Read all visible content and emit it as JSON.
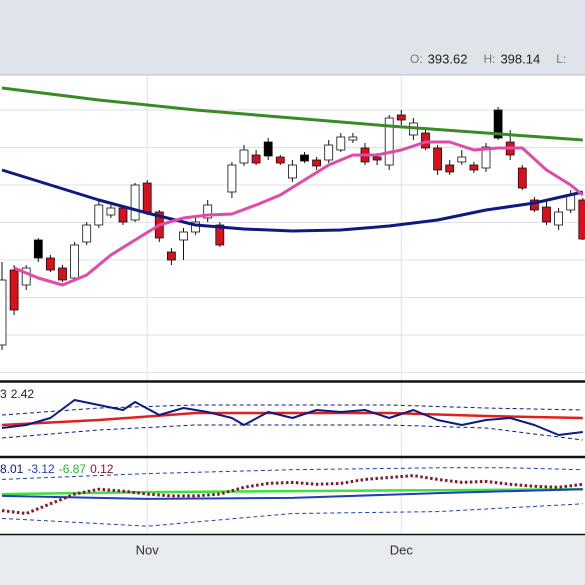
{
  "header": {
    "readout": [
      {
        "label": "O:",
        "value": 393.62
      },
      {
        "label": "H:",
        "value": 398.14
      },
      {
        "label": "L:"
      }
    ]
  },
  "chart_data": [
    {
      "type": "candlestick",
      "categories": [
        null,
        null,
        null,
        null,
        null,
        null,
        null,
        null,
        null,
        null,
        null,
        null,
        "Nov",
        null,
        null,
        null,
        null,
        null,
        null,
        null,
        null,
        null,
        null,
        null,
        null,
        null,
        null,
        null,
        null,
        null,
        null,
        null,
        null,
        "Dec",
        null,
        null,
        null,
        null,
        null,
        null,
        null,
        null,
        null,
        null,
        null,
        null,
        null,
        null,
        null
      ],
      "ylim": [
        369.5,
        400
      ],
      "ygrid": [
        396.5,
        392.75,
        389,
        385.25,
        381.5,
        377.75,
        374,
        370.25
      ],
      "ohlc": [
        [
          373.0,
          381.3,
          372.5,
          379.5
        ],
        [
          380.5,
          381.0,
          376.0,
          376.5
        ],
        [
          379.0,
          381.0,
          378.5,
          380.7
        ],
        [
          381.7,
          383.7,
          381.3,
          383.5
        ],
        [
          381.7,
          382.0,
          380.3,
          380.5
        ],
        [
          380.7,
          381.0,
          379.3,
          379.5
        ],
        [
          379.7,
          383.3,
          379.5,
          383.0
        ],
        [
          383.3,
          385.3,
          383.0,
          385.0
        ],
        [
          385.0,
          387.5,
          384.7,
          387.0
        ],
        [
          386.0,
          387.0,
          385.7,
          386.7
        ],
        [
          386.7,
          387.0,
          385.0,
          385.3
        ],
        [
          385.5,
          389.2,
          385.3,
          389.0
        ],
        [
          389.2,
          389.5,
          386.0,
          386.3
        ],
        [
          386.3,
          386.5,
          383.3,
          383.7
        ],
        [
          382.3,
          382.7,
          381.0,
          381.5
        ],
        [
          383.5,
          384.7,
          381.5,
          384.3
        ],
        [
          384.3,
          385.7,
          384.0,
          385.3
        ],
        [
          385.7,
          387.5,
          385.3,
          387.0
        ],
        [
          385.0,
          385.3,
          382.8,
          383.0
        ],
        [
          388.3,
          391.3,
          387.7,
          391.0
        ],
        [
          391.2,
          393.0,
          390.9,
          392.5
        ],
        [
          392.0,
          392.5,
          391.0,
          391.2
        ],
        [
          391.9,
          393.7,
          391.5,
          393.3
        ],
        [
          391.8,
          392.0,
          391.0,
          391.2
        ],
        [
          389.7,
          391.5,
          389.3,
          391.0
        ],
        [
          391.4,
          392.3,
          391.2,
          392.0
        ],
        [
          391.5,
          391.8,
          390.5,
          390.9
        ],
        [
          391.5,
          393.5,
          391.2,
          393.0
        ],
        [
          392.5,
          394.2,
          392.3,
          393.8
        ],
        [
          393.5,
          394.2,
          393.2,
          393.8
        ],
        [
          392.7,
          393.2,
          391.0,
          391.3
        ],
        [
          391.8,
          392.2,
          391.0,
          391.5
        ],
        [
          391.0,
          396.0,
          390.5,
          395.7
        ],
        [
          396.0,
          396.5,
          395.0,
          395.5
        ],
        [
          394.0,
          395.7,
          393.5,
          395.2
        ],
        [
          394.2,
          394.5,
          392.5,
          392.7
        ],
        [
          392.7,
          393.0,
          390.0,
          390.5
        ],
        [
          391.0,
          391.5,
          390.0,
          390.3
        ],
        [
          391.3,
          392.5,
          391.0,
          391.8
        ],
        [
          391.0,
          391.3,
          390.2,
          390.5
        ],
        [
          390.7,
          393.2,
          390.3,
          392.8
        ],
        [
          393.7,
          396.8,
          393.5,
          396.5
        ],
        [
          393.3,
          394.5,
          391.5,
          392.0
        ],
        [
          390.7,
          391.0,
          388.5,
          388.7
        ],
        [
          387.5,
          387.8,
          386.3,
          386.5
        ],
        [
          386.8,
          387.5,
          385.0,
          385.3
        ],
        [
          385.0,
          386.7,
          384.5,
          386.3
        ],
        [
          386.5,
          388.5,
          386.2,
          388.0
        ],
        [
          387.5,
          387.7,
          383.5,
          383.6
        ]
      ],
      "fills": [
        "#ffffff",
        "#d8101c",
        "#ffffff",
        "#000000",
        "#d8101c",
        "#d8101c",
        "#ffffff",
        "#ffffff",
        "#ffffff",
        "#ffffff",
        "#d8101c",
        "#ffffff",
        "#d8101c",
        "#d8101c",
        "#d8101c",
        "#ffffff",
        "#ffffff",
        "#ffffff",
        "#d8101c",
        "#ffffff",
        "#ffffff",
        "#d8101c",
        "#000000",
        "#d8101c",
        "#ffffff",
        "#000000",
        "#d8101c",
        "#ffffff",
        "#ffffff",
        "#ffffff",
        "#d8101c",
        "#d8101c",
        "#ffffff",
        "#d8101c",
        "#ffffff",
        "#d8101c",
        "#d8101c",
        "#d8101c",
        "#ffffff",
        "#d8101c",
        "#ffffff",
        "#000000",
        "#d8101c",
        "#d8101c",
        "#d8101c",
        "#d8101c",
        "#ffffff",
        "#ffffff",
        "#d8101c"
      ],
      "series": [
        {
          "color": "#3a8a26",
          "style": "solid",
          "width": 3,
          "x": [
            0,
            8,
            16,
            24,
            32,
            40,
            48
          ],
          "values": [
            398.7,
            397.5,
            396.5,
            395.7,
            394.9,
            394.2,
            393.5
          ]
        },
        {
          "color": "#0d1a80",
          "style": "solid",
          "width": 3,
          "x": [
            0,
            4,
            8,
            12,
            16,
            20,
            24,
            28,
            32,
            36,
            40,
            44,
            48
          ],
          "values": [
            390.5,
            389,
            387.5,
            386.2,
            385,
            384.6,
            384.4,
            384.5,
            384.9,
            385.5,
            386.5,
            387.2,
            388.3
          ]
        },
        {
          "color": "#e04aa8",
          "style": "solid",
          "width": 3,
          "x": [
            1,
            3,
            5,
            7,
            9,
            11,
            13,
            15,
            17,
            19,
            21,
            23,
            25,
            27,
            29,
            31,
            33,
            35,
            37,
            39,
            41,
            43,
            45,
            47,
            48
          ],
          "values": [
            380.7,
            379.7,
            379,
            380,
            382,
            383.5,
            385,
            385.7,
            386,
            386.1,
            387,
            388,
            389.5,
            391,
            392,
            392,
            392.5,
            393.3,
            393.3,
            392.5,
            392.7,
            392.7,
            390.5,
            389,
            388
          ]
        }
      ]
    },
    {
      "type": "line",
      "ylim": [
        0,
        100
      ],
      "readout": [
        {
          "value": 3,
          "color": "#1b1b3a"
        },
        {
          "value": 2.42,
          "color": "#1b1b3a"
        }
      ],
      "series": [
        {
          "color": "#0d1a80",
          "style": "dashed",
          "width": 1,
          "x": [
            0,
            8,
            16,
            24,
            32,
            40,
            48
          ],
          "values": [
            56.2,
            65.8,
            69.9,
            69.9,
            69.9,
            65.8,
            63.0
          ]
        },
        {
          "color": "#0d1a80",
          "style": "dashed",
          "width": 1,
          "x": [
            0,
            8,
            16,
            24,
            32,
            40,
            48
          ],
          "values": [
            24.7,
            35.6,
            42.5,
            42.5,
            42.5,
            38.4,
            21.9
          ]
        },
        {
          "color": "#e0201c",
          "style": "solid",
          "width": 2.5,
          "x": [
            0,
            8,
            16,
            24,
            32,
            40,
            48
          ],
          "values": [
            42.5,
            49.3,
            58.9,
            58.9,
            58.9,
            54.8,
            52.1
          ]
        },
        {
          "color": "#0d1a80",
          "style": "solid",
          "width": 2,
          "x": [
            0,
            2,
            4,
            6,
            8,
            10,
            11,
            13,
            15,
            17,
            19,
            20,
            22,
            24,
            26,
            28,
            30,
            32,
            34,
            36,
            38,
            40,
            42,
            44,
            46,
            48
          ],
          "values": [
            38.4,
            42.5,
            52.1,
            76.7,
            69.9,
            63.0,
            74.0,
            56.2,
            65.8,
            60.3,
            52.1,
            42.5,
            60.3,
            52.1,
            63.0,
            60.3,
            63.0,
            52.1,
            63.0,
            49.3,
            42.5,
            49.3,
            52.1,
            42.5,
            28.8,
            32.9
          ]
        }
      ]
    },
    {
      "type": "line",
      "ylim": [
        0,
        100
      ],
      "readout": [
        {
          "value": 8.01,
          "color": "#0d1a80"
        },
        {
          "value": -3.12,
          "color": "#1f3fbf"
        },
        {
          "value": -6.87,
          "color": "#22b83a"
        },
        {
          "value": 0.12,
          "color": "#8a1530"
        }
      ],
      "series": [
        {
          "color": "#1f3fbf",
          "style": "dashed",
          "width": 1,
          "x": [
            0,
            12,
            24,
            36,
            42,
            48
          ],
          "values": [
            71.4,
            79.2,
            84.4,
            87,
            87,
            84.4
          ]
        },
        {
          "color": "#1f3fbf",
          "style": "dashed",
          "width": 1,
          "x": [
            0,
            12,
            24,
            36,
            48
          ],
          "values": [
            19.5,
            9.1,
            26,
            28.6,
            39
          ]
        },
        {
          "color": "#3ee03a",
          "style": "solid",
          "width": 2.5,
          "x": [
            0,
            12,
            24,
            36,
            48
          ],
          "values": [
            51.9,
            54.5,
            55.8,
            57.1,
            58.4
          ]
        },
        {
          "color": "#1f3fbf",
          "style": "solid",
          "width": 2,
          "x": [
            0,
            12,
            24,
            36,
            48
          ],
          "values": [
            49.4,
            45.5,
            46.8,
            53.2,
            58.4
          ]
        },
        {
          "color": "#8a1530",
          "style": "dotted",
          "width": 3,
          "x": [
            0,
            2,
            4,
            6,
            8,
            10,
            12,
            14,
            16,
            18,
            20,
            22,
            24,
            26,
            28,
            30,
            32,
            34,
            36,
            38,
            40,
            42,
            44,
            46,
            48
          ],
          "values": [
            29.9,
            26,
            39,
            51.9,
            58.4,
            55.8,
            51.9,
            49.4,
            49.4,
            51.9,
            61.0,
            66.2,
            67.5,
            64.9,
            66.2,
            71.4,
            74.0,
            76.6,
            71.4,
            67.5,
            68.8,
            64.9,
            62.3,
            61.0,
            64.9
          ]
        }
      ]
    }
  ]
}
